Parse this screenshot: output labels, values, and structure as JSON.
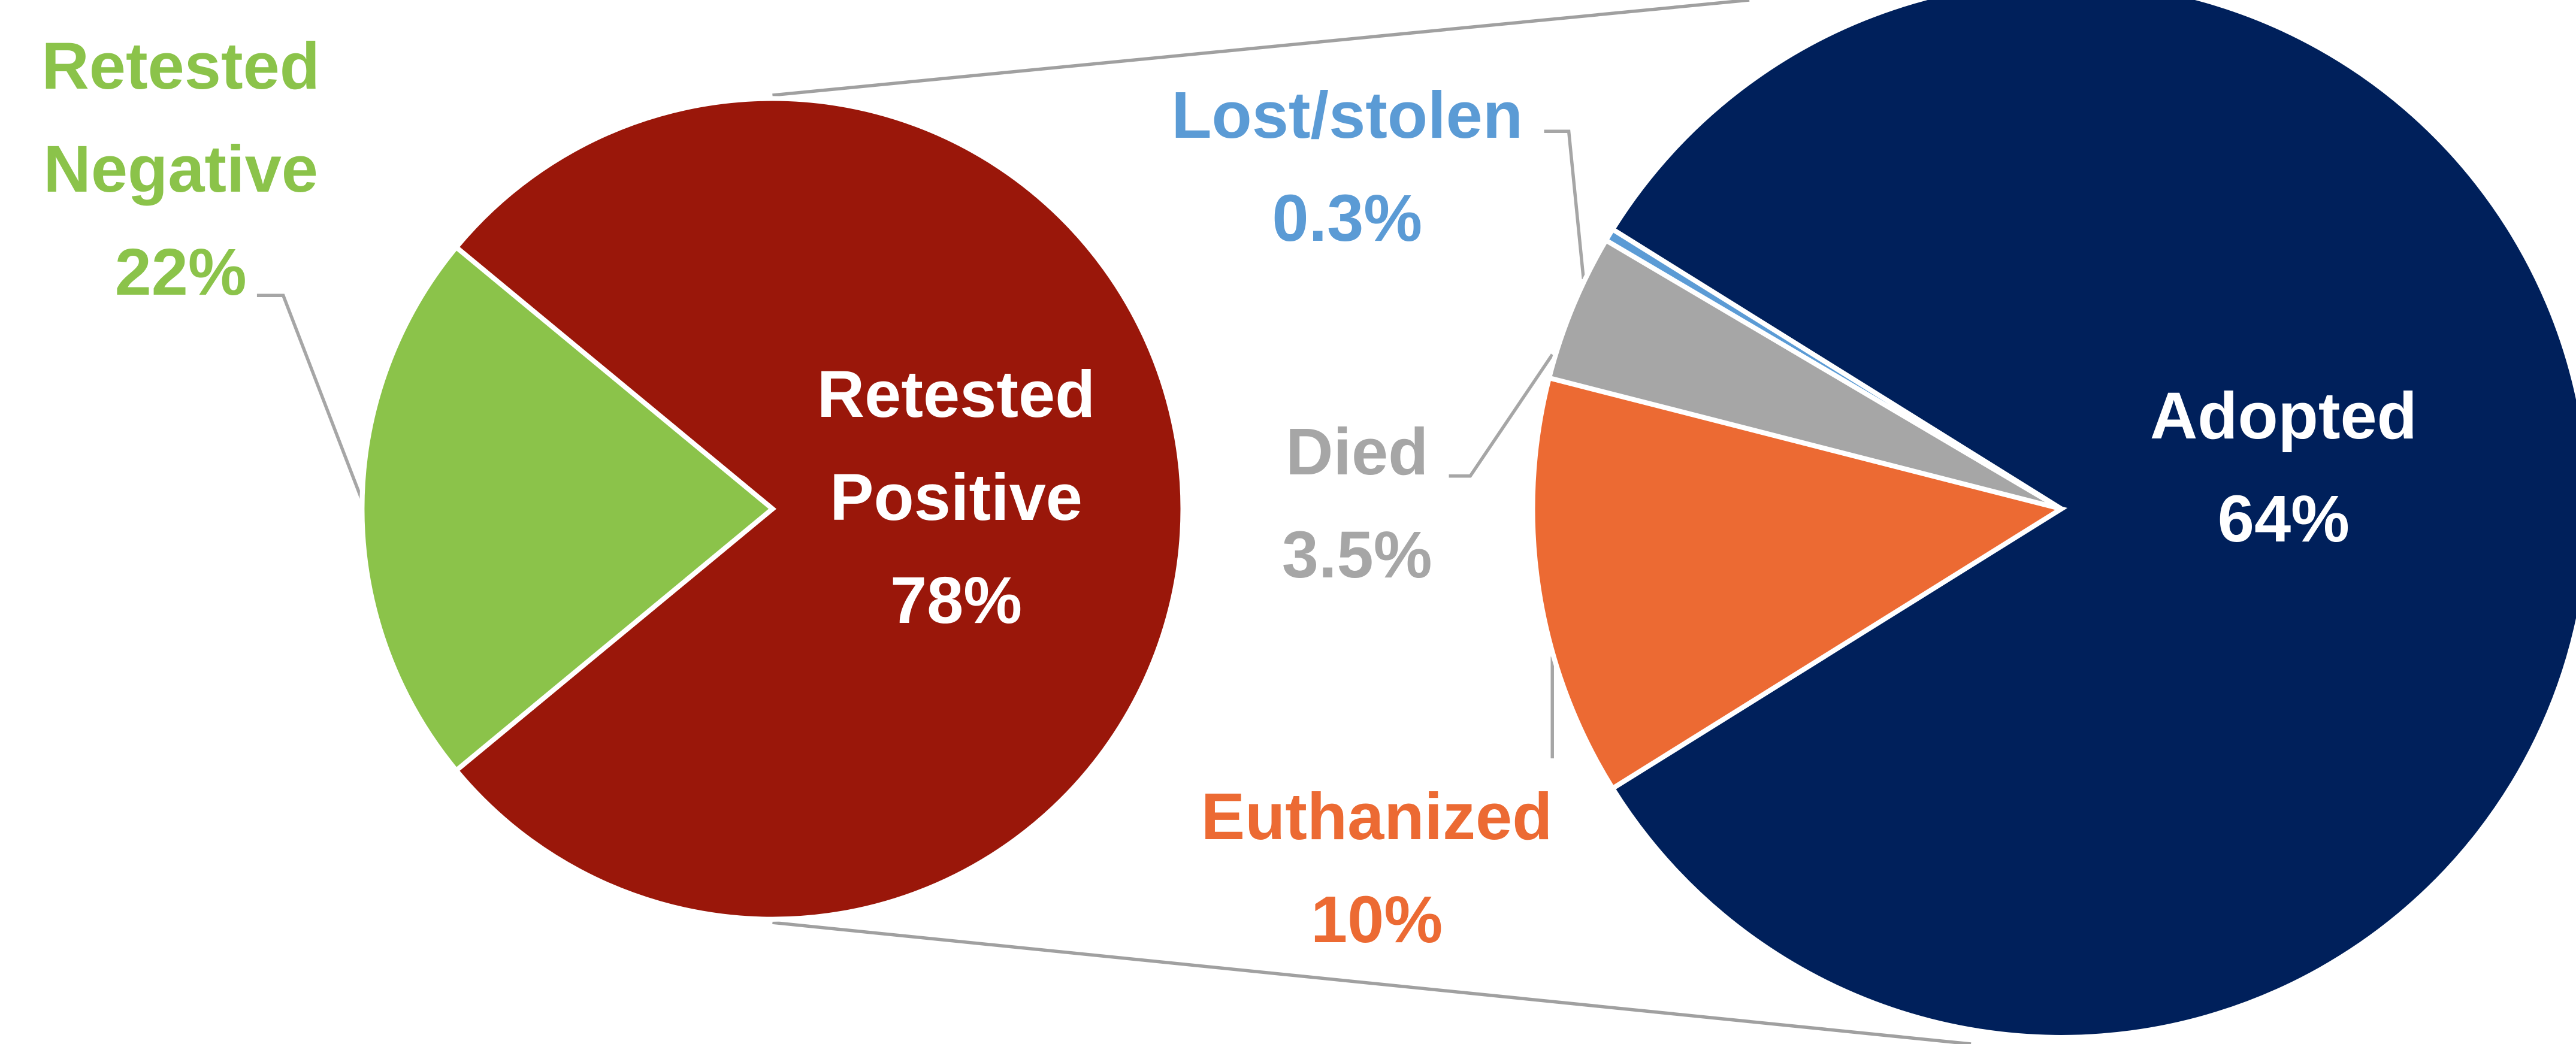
{
  "chart_data": [
    {
      "type": "pie",
      "categories": [
        "Retested Positive",
        "Retested Negative"
      ],
      "values": [
        78,
        22
      ],
      "value_labels": [
        "78%",
        "22%"
      ],
      "colors": [
        "#9a170a",
        "#8bc34a"
      ]
    },
    {
      "type": "pie",
      "categories": [
        "Adopted",
        "Euthanized",
        "Died",
        "Lost/stolen"
      ],
      "values": [
        64,
        10,
        3.5,
        0.3
      ],
      "value_labels": [
        "64%",
        "10%",
        "3.5%",
        "0.3%"
      ],
      "colors": [
        "#00205b",
        "#ec6a33",
        "#a6a6a6",
        "#5b9bd5"
      ]
    }
  ]
}
